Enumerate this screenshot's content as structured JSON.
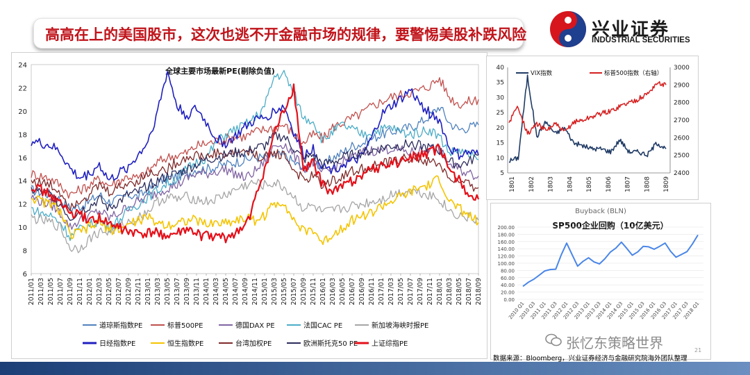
{
  "header": {
    "title": "高高在上的美国股市，这次也逃不开金融市场的规律，要警惕美股补跌风险",
    "logo_cn": "兴业证券",
    "logo_en": "INDUSTRIAL SECURITIES",
    "logo_colors": {
      "red": "#d7151d",
      "blue": "#1f3f8f"
    }
  },
  "footer": {
    "source": "数据来源：Bloomberg，兴业证券经济与金融研究院海外团队整理",
    "watermark": "张忆东策略世界",
    "page_number": "21"
  },
  "chart_data": [
    {
      "type": "line",
      "title": "全球主要市场最新PE(剔除负值)",
      "ylim": [
        6,
        24
      ],
      "yticks": [
        "6",
        "8",
        "10",
        "12",
        "14",
        "16",
        "18",
        "20",
        "22",
        "24"
      ],
      "categories": [
        "2011/01",
        "2011/03",
        "2011/05",
        "2011/07",
        "2011/09",
        "2011/11",
        "2012/01",
        "2012/03",
        "2012/05",
        "2012/07",
        "2012/09",
        "2012/11",
        "2013/01",
        "2013/03",
        "2013/05",
        "2013/07",
        "2013/09",
        "2013/11",
        "2014/01",
        "2014/03",
        "2014/05",
        "2014/07",
        "2014/09",
        "2014/11",
        "2015/01",
        "2015/03",
        "2015/05",
        "2015/07",
        "2015/09",
        "2015/11",
        "2016/01",
        "2016/03",
        "2016/05",
        "2016/07",
        "2016/09",
        "2016/11",
        "2017/01",
        "2017/03",
        "2017/05",
        "2017/07",
        "2017/09",
        "2017/11",
        "2018/01",
        "2018/03",
        "2018/05",
        "2018/07",
        "2018/09"
      ],
      "series": [
        {
          "name": "道琼斯指数PE",
          "color": "#4f81bd",
          "values": [
            13.2,
            13.0,
            12.8,
            12.4,
            11.6,
            11.8,
            12.2,
            12.8,
            12.2,
            12.4,
            12.8,
            12.6,
            13.2,
            13.8,
            14.2,
            14.4,
            14.6,
            15.0,
            15.0,
            15.2,
            15.4,
            15.6,
            15.8,
            16.0,
            16.0,
            16.2,
            16.2,
            15.6,
            15.0,
            15.6,
            15.2,
            16.0,
            16.4,
            17.0,
            17.2,
            17.6,
            18.0,
            18.2,
            18.4,
            18.6,
            19.0,
            19.6,
            20.4,
            19.0,
            18.4,
            18.6,
            18.8
          ]
        },
        {
          "name": "标普500PE",
          "color": "#c0504d",
          "values": [
            14.6,
            14.4,
            14.2,
            13.6,
            12.8,
            13.2,
            13.6,
            14.2,
            13.6,
            14.0,
            14.4,
            14.2,
            14.8,
            15.6,
            16.0,
            16.2,
            16.4,
            17.0,
            17.2,
            17.4,
            17.6,
            17.8,
            17.8,
            18.2,
            18.4,
            18.6,
            18.8,
            18.0,
            17.2,
            18.0,
            17.6,
            18.6,
            19.0,
            19.4,
            19.8,
            20.4,
            20.8,
            21.2,
            21.4,
            21.6,
            21.8,
            22.2,
            22.8,
            21.2,
            20.6,
            20.8,
            21.0
          ]
        },
        {
          "name": "德国DAX PE",
          "color": "#8064a2",
          "values": [
            12.6,
            12.2,
            12.0,
            11.2,
            10.0,
            10.6,
            11.0,
            11.4,
            10.8,
            11.2,
            11.8,
            12.2,
            12.6,
            13.0,
            13.4,
            13.6,
            14.2,
            14.6,
            14.6,
            14.8,
            15.0,
            14.6,
            14.2,
            14.8,
            15.6,
            17.0,
            17.2,
            16.2,
            15.0,
            15.6,
            14.6,
            15.0,
            15.6,
            16.0,
            16.4,
            16.6,
            16.6,
            16.8,
            16.6,
            16.4,
            16.6,
            16.8,
            16.6,
            15.4,
            15.0,
            14.6,
            14.4
          ]
        },
        {
          "name": "法国CAC PE",
          "color": "#4bacc6",
          "values": [
            11.6,
            11.2,
            11.0,
            10.4,
            9.2,
            9.8,
            10.2,
            10.6,
            10.0,
            10.6,
            11.4,
            12.0,
            12.6,
            13.2,
            13.8,
            14.2,
            15.0,
            15.6,
            16.0,
            17.2,
            18.0,
            18.4,
            18.8,
            19.4,
            20.4,
            23.0,
            23.2,
            21.6,
            19.4,
            19.2,
            17.4,
            18.2,
            18.8,
            18.4,
            18.0,
            18.2,
            18.4,
            18.6,
            18.2,
            18.0,
            18.2,
            18.4,
            17.8,
            16.4,
            16.6,
            16.2,
            15.8
          ]
        },
        {
          "name": "新加坡海峡时报PE",
          "color": "#a5a5a5",
          "values": [
            10.8,
            10.6,
            10.4,
            10.0,
            8.2,
            8.2,
            9.0,
            9.6,
            9.6,
            10.0,
            10.4,
            10.8,
            11.4,
            12.2,
            12.6,
            12.4,
            12.6,
            12.4,
            12.2,
            12.4,
            12.8,
            13.2,
            13.6,
            13.8,
            13.6,
            13.8,
            13.4,
            12.6,
            11.6,
            11.8,
            11.2,
            11.4,
            11.6,
            11.8,
            12.0,
            12.2,
            12.4,
            12.8,
            13.0,
            13.2,
            13.0,
            12.8,
            12.4,
            11.4,
            11.0,
            10.8,
            10.6
          ]
        },
        {
          "name": "日经指数PE",
          "color": "#1f1fbf",
          "values": [
            17.4,
            17.2,
            17.0,
            16.4,
            15.0,
            14.2,
            14.6,
            15.4,
            14.0,
            14.6,
            15.2,
            16.2,
            17.4,
            20.0,
            23.4,
            20.4,
            19.6,
            20.2,
            19.0,
            17.6,
            17.2,
            17.8,
            18.6,
            19.2,
            19.4,
            20.0,
            20.4,
            18.2,
            16.2,
            16.8,
            15.2,
            15.0,
            15.4,
            15.6,
            16.0,
            17.6,
            19.6,
            20.4,
            21.0,
            21.8,
            20.6,
            19.8,
            19.2,
            16.8,
            16.2,
            16.4,
            16.2
          ]
        },
        {
          "name": "恒生指数PE",
          "color": "#f4c400",
          "values": [
            12.6,
            12.2,
            12.0,
            11.4,
            9.2,
            9.6,
            10.0,
            10.4,
            9.8,
            9.8,
            10.2,
            10.6,
            10.8,
            10.4,
            10.2,
            10.4,
            10.6,
            10.6,
            10.2,
            10.4,
            10.4,
            10.6,
            10.8,
            10.6,
            11.0,
            12.0,
            12.2,
            10.6,
            9.6,
            9.8,
            8.6,
            9.4,
            10.0,
            10.6,
            11.0,
            11.2,
            11.8,
            12.2,
            12.6,
            13.0,
            13.4,
            13.6,
            14.2,
            12.2,
            11.6,
            11.0,
            10.4
          ]
        },
        {
          "name": "台湾加权PE",
          "color": "#7f2a2a",
          "values": [
            14.0,
            13.8,
            13.6,
            13.0,
            11.8,
            12.4,
            12.8,
            13.6,
            13.0,
            13.4,
            13.8,
            14.0,
            14.6,
            14.8,
            15.0,
            15.6,
            16.0,
            16.2,
            16.0,
            16.4,
            16.2,
            16.4,
            16.6,
            16.2,
            16.0,
            16.4,
            16.2,
            15.0,
            14.0,
            14.4,
            13.6,
            14.0,
            14.4,
            14.8,
            15.0,
            15.2,
            15.4,
            15.6,
            15.8,
            16.0,
            15.8,
            15.6,
            15.4,
            14.2,
            13.8,
            13.6,
            13.4
          ]
        },
        {
          "name": "欧洲斯托克50 PE",
          "color": "#2c2c5c",
          "values": [
            13.2,
            13.0,
            12.8,
            12.0,
            10.8,
            11.4,
            11.8,
            12.4,
            11.6,
            12.2,
            12.8,
            13.0,
            13.6,
            14.0,
            14.4,
            14.6,
            15.0,
            15.4,
            15.8,
            16.0,
            16.2,
            16.4,
            16.4,
            16.8,
            17.0,
            17.8,
            17.8,
            16.8,
            15.8,
            16.2,
            15.4,
            15.6,
            16.0,
            16.2,
            16.4,
            16.6,
            16.8,
            17.0,
            17.0,
            17.2,
            17.0,
            16.8,
            16.6,
            15.6,
            15.4,
            15.6,
            16.2
          ]
        },
        {
          "name": "上证综指PE",
          "color": "#e4101a",
          "values": [
            13.6,
            13.2,
            12.8,
            12.0,
            11.2,
            11.0,
            10.6,
            10.8,
            10.2,
            10.0,
            9.6,
            9.4,
            9.4,
            9.6,
            9.2,
            9.4,
            9.8,
            9.4,
            9.2,
            9.2,
            9.0,
            9.6,
            10.0,
            12.2,
            15.0,
            18.0,
            20.0,
            22.0,
            14.8,
            15.6,
            13.6,
            13.0,
            13.6,
            14.0,
            14.6,
            15.0,
            15.2,
            15.6,
            15.6,
            16.0,
            16.2,
            16.4,
            16.8,
            15.0,
            14.0,
            12.8,
            12.4
          ]
        }
      ]
    },
    {
      "type": "line",
      "title": "",
      "legend": [
        "VIX指数",
        "标普500指数（右轴）"
      ],
      "ylim_left": [
        5,
        40
      ],
      "ylim_right": [
        2400,
        3000
      ],
      "yticks_left": [
        "5",
        "10",
        "15",
        "20",
        "25",
        "30",
        "35",
        "40"
      ],
      "yticks_right": [
        "2400",
        "2500",
        "2600",
        "2700",
        "2800",
        "2900",
        "3000"
      ],
      "xticks": [
        "1801",
        "1802",
        "1803",
        "1804",
        "1805",
        "1806",
        "1807",
        "1808",
        "1809"
      ],
      "x": [
        "1801",
        "1801.5",
        "1802",
        "1802.5",
        "1803",
        "1803.5",
        "1804",
        "1804.5",
        "1805",
        "1805.5",
        "1806",
        "1806.5",
        "1807",
        "1807.5",
        "1808",
        "1808.5",
        "1809",
        "1809.3"
      ],
      "series": [
        {
          "name": "VIX指数",
          "axis": "left",
          "color": "#1f3a64",
          "values": [
            9,
            10,
            37,
            17,
            22,
            18,
            20,
            15,
            14,
            13,
            13,
            12,
            16,
            12,
            12,
            11,
            15,
            13
          ]
        },
        {
          "name": "标普500指数（右轴）",
          "axis": "right",
          "color": "#d42020",
          "values": [
            2690,
            2780,
            2620,
            2680,
            2640,
            2680,
            2630,
            2690,
            2700,
            2720,
            2740,
            2750,
            2780,
            2800,
            2820,
            2850,
            2910,
            2900
          ]
        }
      ]
    },
    {
      "type": "line",
      "title": "SP500企业回购（10亿美元）",
      "subtitle": "Buyback (BLN)",
      "ylim": [
        0,
        200
      ],
      "yticks": [
        "0.00",
        "20.00",
        "40.00",
        "60.00",
        "80.00",
        "100.00",
        "120.00",
        "140.00",
        "160.00",
        "180.00",
        "200.00"
      ],
      "categories": [
        "2010 Q1",
        "2010 Q3",
        "2011 Q1",
        "2011 Q3",
        "2012 Q1",
        "2012 Q3",
        "2013 Q1",
        "2013 Q3",
        "2014 Q1",
        "2014 Q3",
        "2015 Q1",
        "2015 Q3",
        "2016 Q1",
        "2016 Q3",
        "2017 Q1",
        "2017 Q3",
        "2018 Q1"
      ],
      "series": [
        {
          "name": "Buyback",
          "color": "#4a86e8",
          "values": [
            36,
            58,
            79,
            86,
            155,
            93,
            114,
            98,
            130,
            158,
            124,
            144,
            141,
            153,
            117,
            131,
            178
          ]
        }
      ]
    }
  ]
}
